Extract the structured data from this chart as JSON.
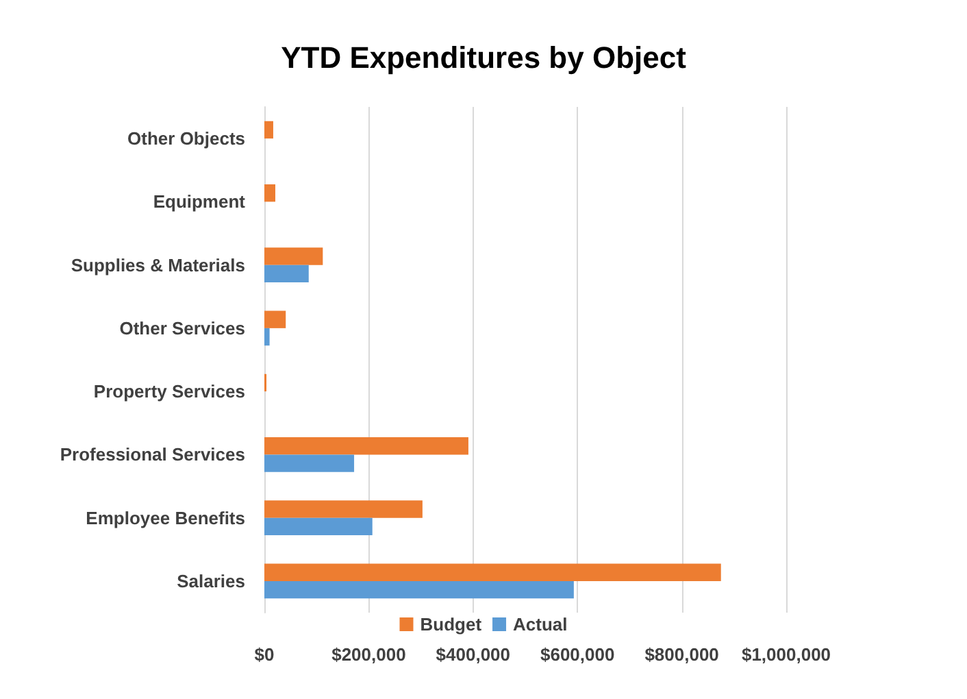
{
  "chart_data": {
    "type": "bar",
    "orientation": "horizontal",
    "title": "YTD Expenditures by Object",
    "categories": [
      "Other Objects",
      "Equipment",
      "Supplies & Materials",
      "Other Services",
      "Property Services",
      "Professional Services",
      "Employee Benefits",
      "Salaries"
    ],
    "series": [
      {
        "name": "Budget",
        "color": "#ed7d31",
        "values": [
          17000,
          21000,
          112000,
          41000,
          4000,
          391000,
          303000,
          875000
        ]
      },
      {
        "name": "Actual",
        "color": "#5b9bd5",
        "values": [
          0,
          0,
          85000,
          10000,
          0,
          172000,
          207000,
          593000
        ]
      }
    ],
    "xlim": [
      0,
      1000000
    ],
    "xticks": [
      {
        "value": 0,
        "label": "$0"
      },
      {
        "value": 200000,
        "label": "$200,000"
      },
      {
        "value": 400000,
        "label": "$400,000"
      },
      {
        "value": 600000,
        "label": "$600,000"
      },
      {
        "value": 800000,
        "label": "$800,000"
      },
      {
        "value": 1000000,
        "label": "$1,000,000"
      }
    ],
    "grid": "x",
    "legend": "bottom"
  }
}
